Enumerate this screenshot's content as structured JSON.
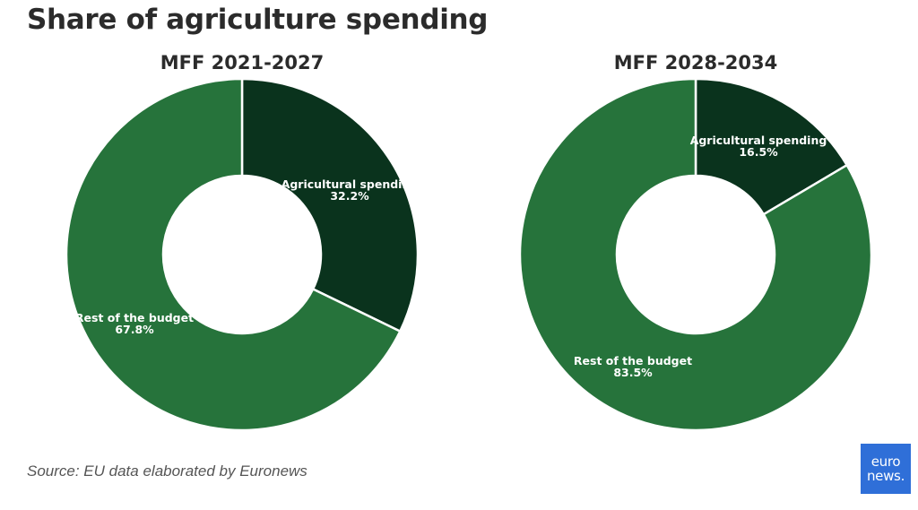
{
  "title": "Share of agriculture spending",
  "source": "Source: EU data elaborated by Euronews",
  "logo": "euronews.",
  "colors": {
    "agricultural": "#0a331d",
    "rest": "#26733b",
    "separator": "#ffffff"
  },
  "chart_data": [
    {
      "type": "pie",
      "title": "MFF 2021-2027",
      "slices": [
        {
          "label": "Agricultural spending",
          "value": 32.2,
          "value_label": "32.2%"
        },
        {
          "label": "Rest of the budget",
          "value": 67.8,
          "value_label": "67.8%"
        }
      ]
    },
    {
      "type": "pie",
      "title": "MFF 2028-2034",
      "slices": [
        {
          "label": "Agricultural spending",
          "value": 16.5,
          "value_label": "16.5%"
        },
        {
          "label": "Rest of the budget",
          "value": 83.5,
          "value_label": "83.5%"
        }
      ]
    }
  ]
}
